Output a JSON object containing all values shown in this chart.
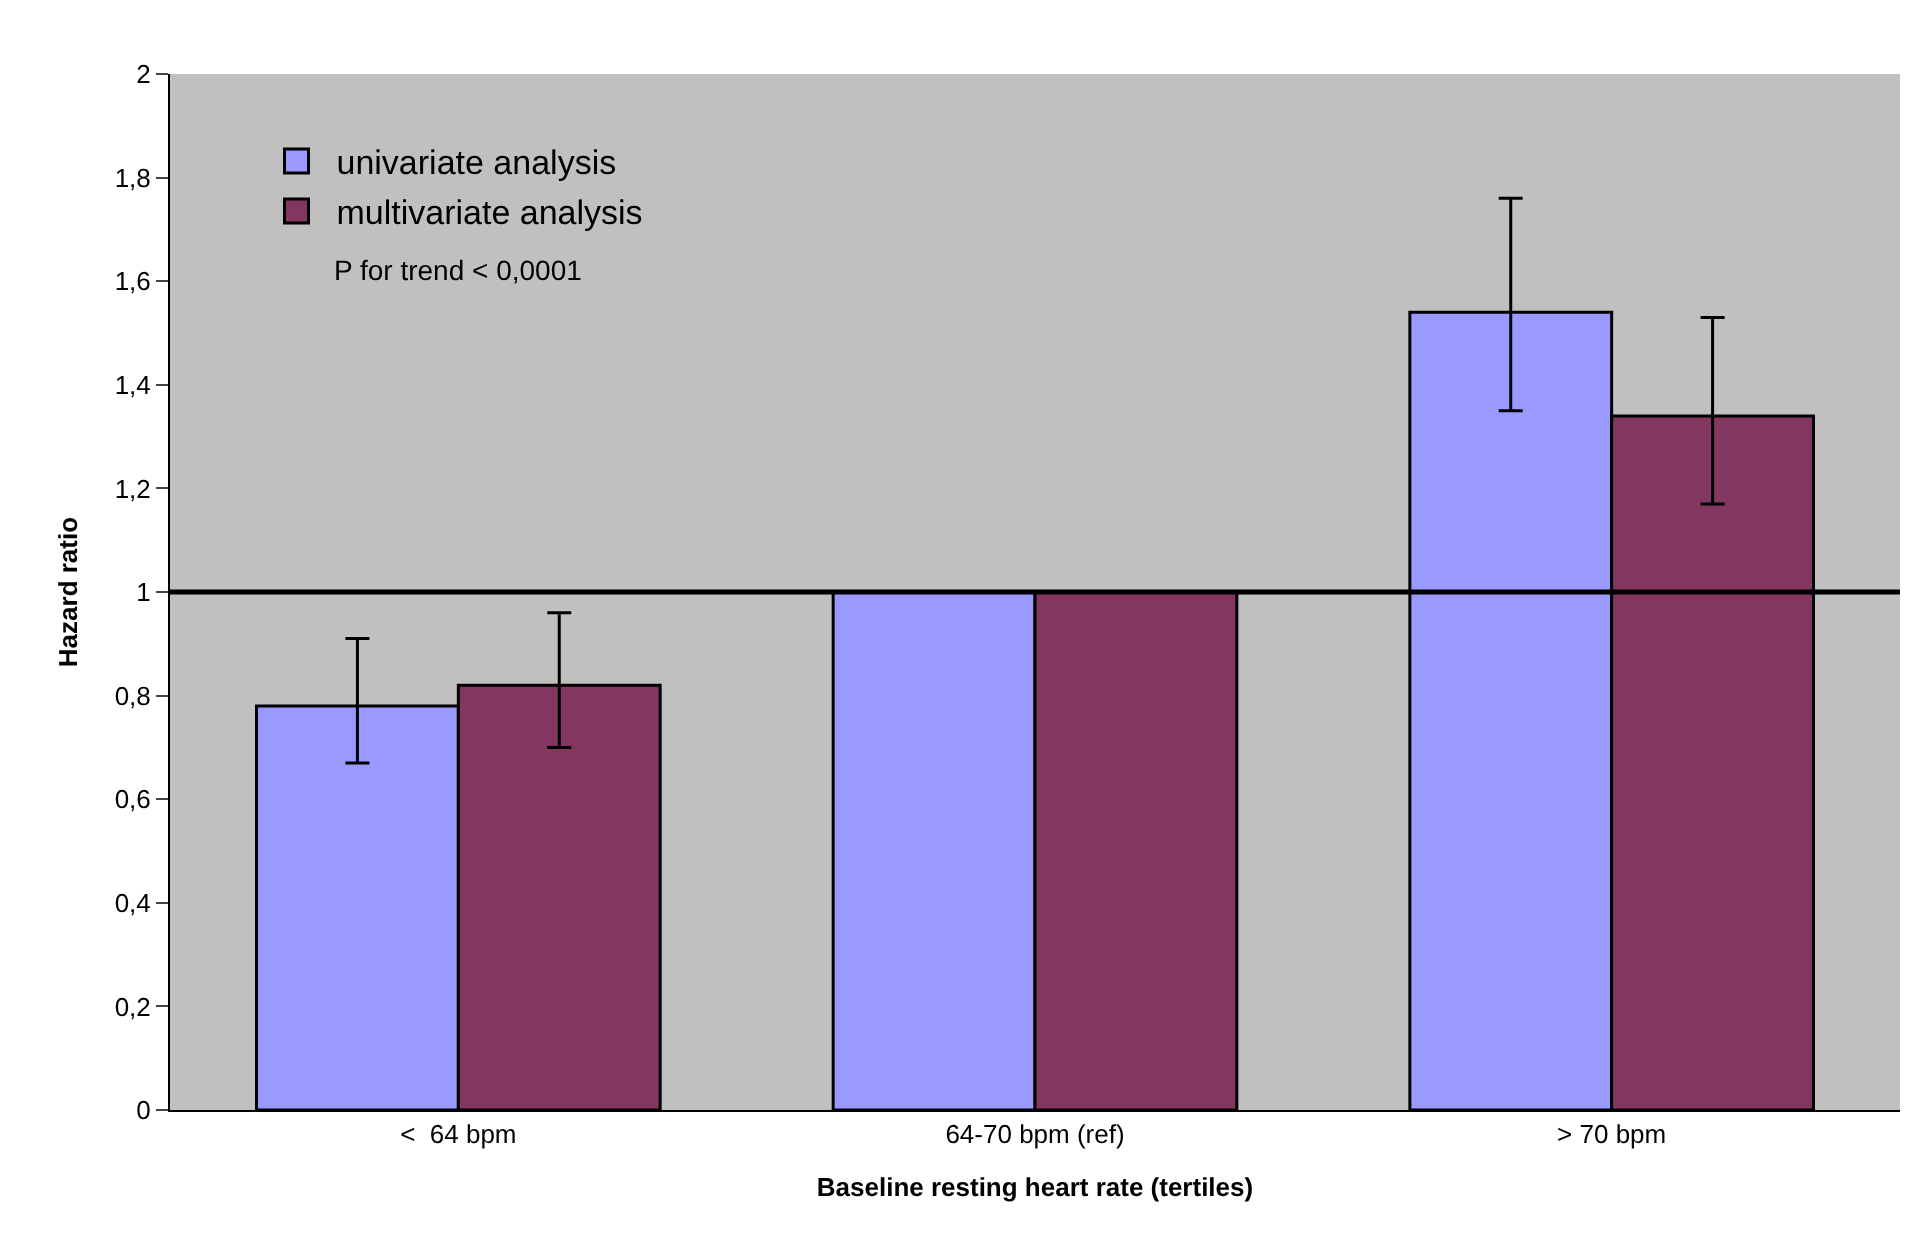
{
  "chart_data": {
    "type": "bar",
    "xlabel": "Baseline resting heart rate (tertiles)",
    "ylabel": "Hazard ratio",
    "categories": [
      "<  64 bpm",
      "64-70 bpm (ref)",
      "> 70 bpm"
    ],
    "series": [
      {
        "name": "univariate analysis",
        "color": "#9999ff",
        "values": [
          0.78,
          1.0,
          1.54
        ],
        "errors": [
          [
            0.67,
            0.91
          ],
          null,
          [
            1.35,
            1.76
          ]
        ]
      },
      {
        "name": "multivariate analysis",
        "color": "#823660",
        "values": [
          0.82,
          1.0,
          1.34
        ],
        "errors": [
          [
            0.7,
            0.96
          ],
          null,
          [
            1.17,
            1.53
          ]
        ]
      }
    ],
    "ylim": [
      0,
      2
    ],
    "yticks": [
      0,
      {
        "value": 0.2,
        "label": "0,2"
      },
      {
        "value": 0.4,
        "label": "0,4"
      },
      {
        "value": 0.6,
        "label": "0,6"
      },
      {
        "value": 0.8,
        "label": "0,8"
      },
      1,
      {
        "value": 1.2,
        "label": "1,2"
      },
      {
        "value": 1.4,
        "label": "1,4"
      },
      {
        "value": 1.6,
        "label": "1,6"
      },
      {
        "value": 1.8,
        "label": "1,8"
      },
      2
    ],
    "ref_lines": [
      {
        "axis": "y",
        "value": 1,
        "color": "#000000"
      }
    ],
    "annotations": [
      "P for trend < 0,0001"
    ],
    "legend": "top left",
    "grid": false
  }
}
